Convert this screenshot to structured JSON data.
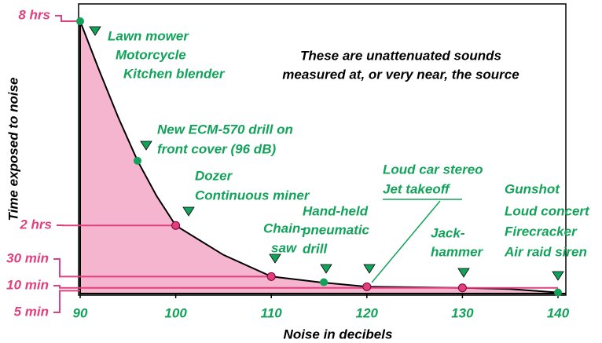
{
  "chart_data": {
    "type": "line",
    "ylabel": "Time exposed to noise",
    "xlabel": "Noise in decibels",
    "note": [
      "These are unattenuated sounds",
      "measured at, or very near, the source"
    ],
    "xlim": [
      90,
      140
    ],
    "ylim": [
      0,
      480
    ],
    "xticks": [
      90,
      100,
      110,
      120,
      130,
      140
    ],
    "yticks": [
      {
        "value": 480,
        "label": "8 hrs"
      },
      {
        "value": 120,
        "label": "2 hrs"
      },
      {
        "value": 30,
        "label": "30 min"
      },
      {
        "value": 10,
        "label": "10 min"
      },
      {
        "value": 5,
        "label": "5 min"
      }
    ],
    "curve": {
      "color": "#000000",
      "fill": "#f6b5cf",
      "x": [
        90,
        92,
        94,
        96,
        98,
        100,
        105,
        110,
        115,
        120,
        125,
        130,
        135,
        140
      ],
      "values": [
        480,
        393,
        310,
        234,
        172,
        120,
        68,
        30,
        20,
        12,
        11,
        10,
        8,
        2
      ]
    },
    "points": [
      {
        "x": 90,
        "y": 480,
        "color": "#12a25a"
      },
      {
        "x": 96,
        "y": 234,
        "color": "#12a25a"
      },
      {
        "x": 100,
        "y": 120,
        "color": "#e0407e"
      },
      {
        "x": 110,
        "y": 30,
        "color": "#e0407e"
      },
      {
        "x": 115.5,
        "y": 20,
        "color": "#12a25a"
      },
      {
        "x": 120,
        "y": 12,
        "color": "#e0407e"
      },
      {
        "x": 130,
        "y": 10,
        "color": "#e0407e"
      },
      {
        "x": 140,
        "y": 2,
        "color": "#12a25a"
      }
    ],
    "annotations": [
      [
        "Lawn mower",
        "Motorcycle",
        "Kitchen blender"
      ],
      [
        "New ECM-570 drill on",
        "front cover (96 dB)"
      ],
      [
        "Dozer",
        "Continuous miner"
      ],
      [
        "Chain-",
        "saw"
      ],
      [
        "Hand-held",
        "pneumatic",
        "drill"
      ],
      [
        "Loud car stereo",
        "Jet takeoff"
      ],
      [
        "Jack-",
        "hammer"
      ],
      [
        "Gunshot",
        "Loud concert",
        "Firecracker",
        "Air raid siren"
      ]
    ],
    "annotation_color": "#12a25a",
    "tick_color": "#e0407e"
  }
}
